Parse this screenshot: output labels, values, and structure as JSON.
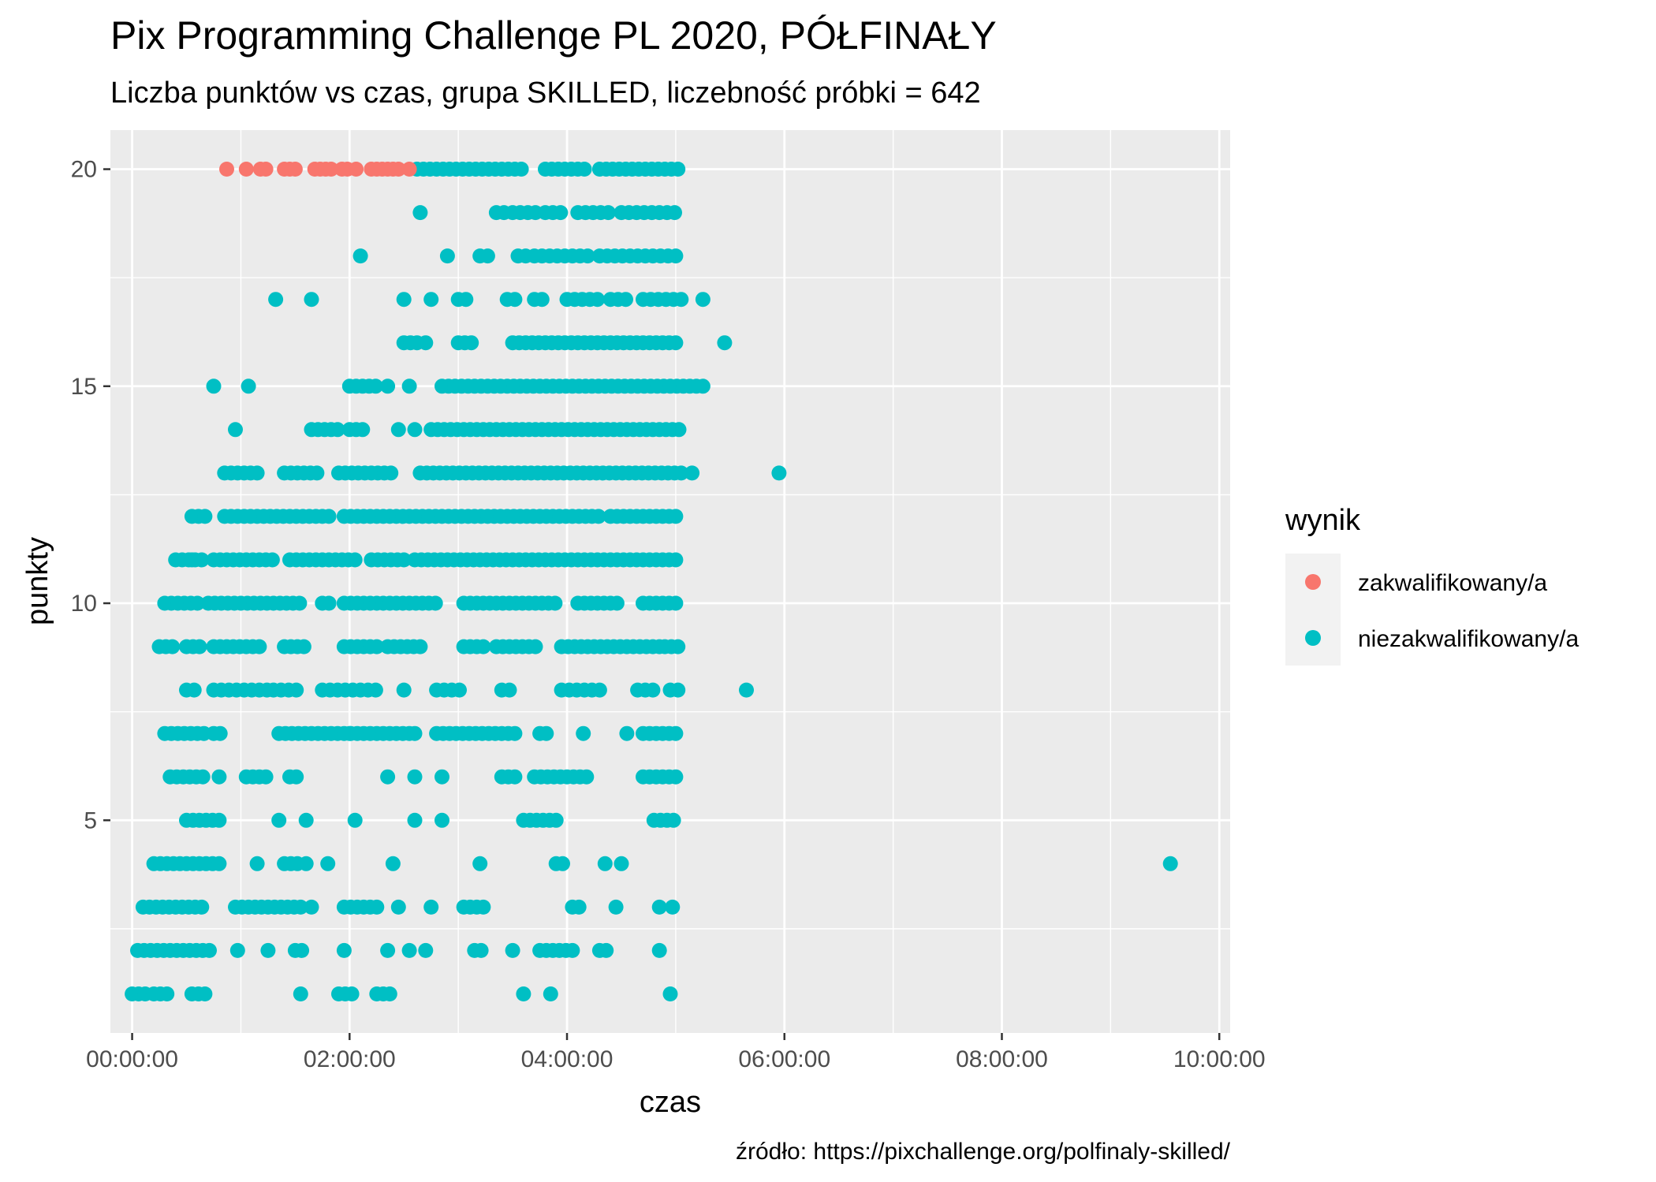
{
  "chart_data": {
    "type": "scatter",
    "title": "Pix Programming Challenge PL 2020, PÓŁFINAŁY",
    "subtitle": "Liczba punktów vs czas, grupa SKILLED, liczebność próbki = 642",
    "xlabel": "czas",
    "ylabel": "punkty",
    "caption": "źródło: https://pixchallenge.org/polfinaly-skilled/",
    "x_unit": "hours",
    "xlim": [
      -0.2,
      10.1
    ],
    "ylim": [
      0.1,
      20.9
    ],
    "x_ticks": [
      0,
      2,
      4,
      6,
      8,
      10
    ],
    "x_tick_labels": [
      "00:00:00",
      "02:00:00",
      "04:00:00",
      "06:00:00",
      "08:00:00",
      "10:00:00"
    ],
    "y_ticks": [
      5,
      10,
      15,
      20
    ],
    "y_tick_labels": [
      "5",
      "10",
      "15",
      "20"
    ],
    "grid": true,
    "legend": {
      "title": "wynik",
      "position": "right",
      "entries": [
        {
          "label": "zakwalifikowany/a",
          "color": "#F8766D"
        },
        {
          "label": "niezakwalifikowany/a",
          "color": "#00BFC4"
        }
      ]
    },
    "series": [
      {
        "name": "zakwalifikowany/a",
        "color": "#F8766D",
        "points": [
          [
            0.87,
            20
          ],
          [
            1.05,
            20
          ],
          [
            1.18,
            20
          ],
          [
            1.23,
            20
          ],
          [
            1.4,
            20
          ],
          [
            1.45,
            20
          ],
          [
            1.5,
            20
          ],
          [
            1.68,
            20
          ],
          [
            1.73,
            20
          ],
          [
            1.78,
            20
          ],
          [
            1.83,
            20
          ],
          [
            1.93,
            20
          ],
          [
            1.98,
            20
          ],
          [
            2.06,
            20
          ],
          [
            2.2,
            20
          ],
          [
            2.25,
            20
          ],
          [
            2.3,
            20
          ],
          [
            2.35,
            20
          ],
          [
            2.4,
            20
          ],
          [
            2.45,
            20
          ],
          [
            2.55,
            20
          ]
        ]
      },
      {
        "name": "niezakwalifikowany/a",
        "color": "#00BFC4",
        "clusters": [
          {
            "y": 20,
            "ranges": [
              [
                2.62,
                3.6
              ],
              [
                3.8,
                4.2
              ],
              [
                4.3,
                5.05
              ]
            ],
            "step": 0.06
          },
          {
            "y": 19,
            "ranges": [
              [
                3.35,
                3.45
              ],
              [
                3.5,
                3.75
              ],
              [
                3.8,
                4.0
              ],
              [
                4.1,
                4.4
              ],
              [
                4.5,
                5.05
              ]
            ],
            "step": 0.07
          },
          {
            "y": 18,
            "ranges": [
              [
                3.2,
                3.3
              ],
              [
                3.55,
                3.65
              ],
              [
                3.7,
                4.0
              ],
              [
                4.05,
                4.2
              ],
              [
                4.3,
                5.05
              ]
            ],
            "step": 0.07
          },
          {
            "y": 17,
            "ranges": [
              [
                3.0,
                3.1
              ],
              [
                3.45,
                3.55
              ],
              [
                3.7,
                3.8
              ],
              [
                4.0,
                4.3
              ],
              [
                4.4,
                4.6
              ],
              [
                4.7,
                5.05
              ]
            ],
            "step": 0.07
          },
          {
            "y": 16,
            "ranges": [
              [
                2.5,
                2.65
              ],
              [
                3.0,
                3.15
              ],
              [
                3.5,
                5.05
              ]
            ],
            "step": 0.06
          },
          {
            "y": 15,
            "ranges": [
              [
                2.0,
                2.25
              ],
              [
                2.85,
                5.25
              ]
            ],
            "step": 0.06
          },
          {
            "y": 14,
            "ranges": [
              [
                1.65,
                1.9
              ],
              [
                2.0,
                2.15
              ],
              [
                2.75,
                5.05
              ]
            ],
            "step": 0.06
          },
          {
            "y": 13,
            "ranges": [
              [
                0.85,
                1.15
              ],
              [
                1.4,
                1.7
              ],
              [
                1.9,
                2.4
              ],
              [
                2.65,
                5.05
              ]
            ],
            "step": 0.06
          },
          {
            "y": 12,
            "ranges": [
              [
                0.55,
                0.7
              ],
              [
                0.85,
                1.85
              ],
              [
                1.95,
                4.3
              ],
              [
                4.4,
                5.05
              ]
            ],
            "step": 0.06
          },
          {
            "y": 11,
            "ranges": [
              [
                0.4,
                0.65
              ],
              [
                0.75,
                1.3
              ],
              [
                1.45,
                2.1
              ],
              [
                2.2,
                2.55
              ],
              [
                2.6,
                5.05
              ]
            ],
            "step": 0.06
          },
          {
            "y": 10,
            "ranges": [
              [
                0.3,
                0.6
              ],
              [
                0.7,
                1.55
              ],
              [
                1.75,
                1.85
              ],
              [
                1.95,
                2.8
              ],
              [
                3.05,
                3.9
              ],
              [
                4.1,
                4.5
              ],
              [
                4.7,
                5.0
              ]
            ],
            "step": 0.06
          },
          {
            "y": 9,
            "ranges": [
              [
                0.25,
                0.4
              ],
              [
                0.5,
                0.65
              ],
              [
                0.75,
                1.2
              ],
              [
                1.4,
                1.6
              ],
              [
                1.95,
                2.25
              ],
              [
                2.35,
                2.65
              ],
              [
                3.05,
                3.25
              ],
              [
                3.35,
                3.75
              ],
              [
                3.95,
                4.5
              ],
              [
                4.55,
                4.85
              ],
              [
                4.9,
                5.05
              ]
            ],
            "step": 0.06
          },
          {
            "y": 8,
            "ranges": [
              [
                0.5,
                0.6
              ],
              [
                0.75,
                1.25
              ],
              [
                1.3,
                1.55
              ],
              [
                1.75,
                2.25
              ],
              [
                2.8,
                3.05
              ],
              [
                3.4,
                3.5
              ],
              [
                3.95,
                4.3
              ],
              [
                4.65,
                4.85
              ],
              [
                4.95,
                5.05
              ]
            ],
            "step": 0.07
          },
          {
            "y": 7,
            "ranges": [
              [
                0.3,
                0.7
              ],
              [
                0.75,
                0.85
              ],
              [
                1.35,
                2.55
              ],
              [
                2.8,
                3.55
              ],
              [
                3.75,
                3.85
              ],
              [
                4.7,
                5.05
              ]
            ],
            "step": 0.06
          },
          {
            "y": 6,
            "ranges": [
              [
                0.35,
                0.65
              ],
              [
                0.8,
                0.85
              ],
              [
                1.05,
                1.25
              ],
              [
                1.45,
                1.55
              ],
              [
                3.4,
                3.55
              ],
              [
                3.7,
                4.2
              ],
              [
                4.7,
                5.05
              ]
            ],
            "step": 0.06
          },
          {
            "y": 5,
            "ranges": [
              [
                0.5,
                0.85
              ],
              [
                3.6,
                3.9
              ],
              [
                4.8,
                5.0
              ]
            ],
            "step": 0.06
          },
          {
            "y": 4,
            "ranges": [
              [
                0.2,
                0.85
              ],
              [
                1.4,
                1.55
              ],
              [
                3.9,
                4.0
              ]
            ],
            "step": 0.06
          },
          {
            "y": 3,
            "ranges": [
              [
                0.1,
                0.65
              ],
              [
                0.95,
                1.2
              ],
              [
                1.25,
                1.55
              ],
              [
                1.95,
                2.25
              ],
              [
                3.05,
                3.25
              ],
              [
                4.05,
                4.15
              ]
            ],
            "step": 0.06
          },
          {
            "y": 2,
            "ranges": [
              [
                0.05,
                0.75
              ],
              [
                1.5,
                1.6
              ],
              [
                3.15,
                3.25
              ],
              [
                3.75,
                4.05
              ],
              [
                4.3,
                4.4
              ]
            ],
            "step": 0.06
          },
          {
            "y": 1,
            "ranges": [
              [
                0.0,
                0.15
              ],
              [
                0.2,
                0.35
              ],
              [
                0.55,
                0.7
              ],
              [
                1.9,
                2.05
              ],
              [
                2.25,
                2.4
              ]
            ],
            "step": 0.06
          }
        ],
        "points": [
          [
            2.65,
            19
          ],
          [
            2.1,
            18
          ],
          [
            2.9,
            18
          ],
          [
            1.32,
            17
          ],
          [
            1.65,
            17
          ],
          [
            2.5,
            17
          ],
          [
            2.75,
            17
          ],
          [
            5.25,
            17
          ],
          [
            2.7,
            16
          ],
          [
            5.45,
            16
          ],
          [
            0.75,
            15
          ],
          [
            1.07,
            15
          ],
          [
            2.35,
            15
          ],
          [
            2.55,
            15
          ],
          [
            0.95,
            14
          ],
          [
            2.45,
            14
          ],
          [
            2.6,
            14
          ],
          [
            5.15,
            13
          ],
          [
            5.95,
            13
          ],
          [
            0.55,
            11
          ],
          [
            5.65,
            8
          ],
          [
            2.5,
            8
          ],
          [
            2.0,
            7
          ],
          [
            2.6,
            7
          ],
          [
            4.15,
            7
          ],
          [
            4.55,
            7
          ],
          [
            2.35,
            6
          ],
          [
            2.6,
            6
          ],
          [
            2.85,
            6
          ],
          [
            1.35,
            5
          ],
          [
            1.6,
            5
          ],
          [
            2.05,
            5
          ],
          [
            2.6,
            5
          ],
          [
            2.85,
            5
          ],
          [
            1.15,
            4
          ],
          [
            1.6,
            4
          ],
          [
            1.8,
            4
          ],
          [
            2.4,
            4
          ],
          [
            3.2,
            4
          ],
          [
            4.35,
            4
          ],
          [
            4.5,
            4
          ],
          [
            9.55,
            4
          ],
          [
            1.65,
            3
          ],
          [
            2.45,
            3
          ],
          [
            2.75,
            3
          ],
          [
            4.45,
            3
          ],
          [
            4.85,
            3
          ],
          [
            4.97,
            3
          ],
          [
            0.97,
            2
          ],
          [
            1.25,
            2
          ],
          [
            1.95,
            2
          ],
          [
            2.35,
            2
          ],
          [
            2.55,
            2
          ],
          [
            2.7,
            2
          ],
          [
            3.5,
            2
          ],
          [
            4.85,
            2
          ],
          [
            1.55,
            1
          ],
          [
            3.6,
            1
          ],
          [
            3.85,
            1
          ],
          [
            4.95,
            1
          ]
        ]
      }
    ]
  }
}
